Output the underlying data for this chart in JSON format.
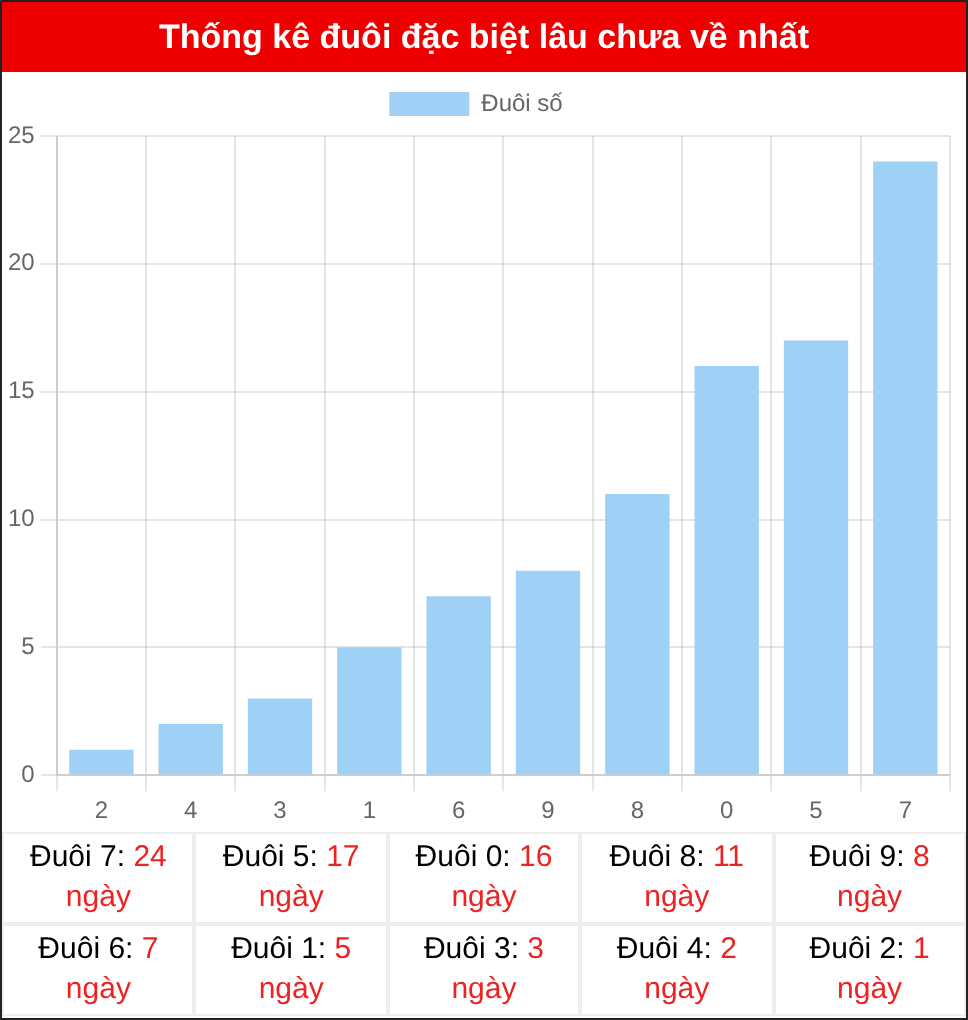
{
  "chart_data": {
    "type": "bar",
    "title": "Thống kê đuôi đặc biệt lâu chưa về nhất",
    "categories": [
      "2",
      "4",
      "3",
      "1",
      "6",
      "9",
      "8",
      "0",
      "5",
      "7"
    ],
    "series": [
      {
        "name": "Đuôi số",
        "color": "#9fd0f5",
        "values": [
          1,
          2,
          3,
          5,
          7,
          8,
          11,
          16,
          17,
          24
        ]
      }
    ],
    "ylim": [
      0,
      25
    ],
    "yticks": [
      0,
      5,
      10,
      15,
      20,
      25
    ],
    "grid": true,
    "legend": "top",
    "annotations": [
      "Đuôi 7: 24 ngày",
      "Đuôi 5: 17 ngày",
      "Đuôi 0: 16 ngày",
      "Đuôi 8: 11 ngày",
      "Đuôi 9: 8 ngày",
      "Đuôi 6: 7 ngày",
      "Đuôi 1: 5 ngày",
      "Đuôi 3: 3 ngày",
      "Đuôi 4: 2 ngày",
      "Đuôi 2: 1 ngày"
    ]
  }
}
